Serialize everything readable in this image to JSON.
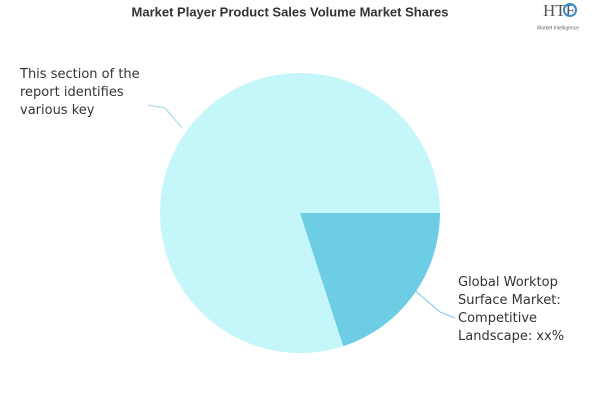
{
  "chart_data": {
    "type": "pie",
    "title": "Market Player Product Sales Volume Market Shares",
    "categories": [
      "This section of the report identifies various key",
      "Global Worktop Surface Market: Competitive Landscape: xx%"
    ],
    "values": [
      80,
      20
    ],
    "colors": [
      "#c4f6fa",
      "#6ccde5"
    ]
  },
  "logo": {
    "name": "HTF",
    "tagline": "Market Intelligence"
  }
}
